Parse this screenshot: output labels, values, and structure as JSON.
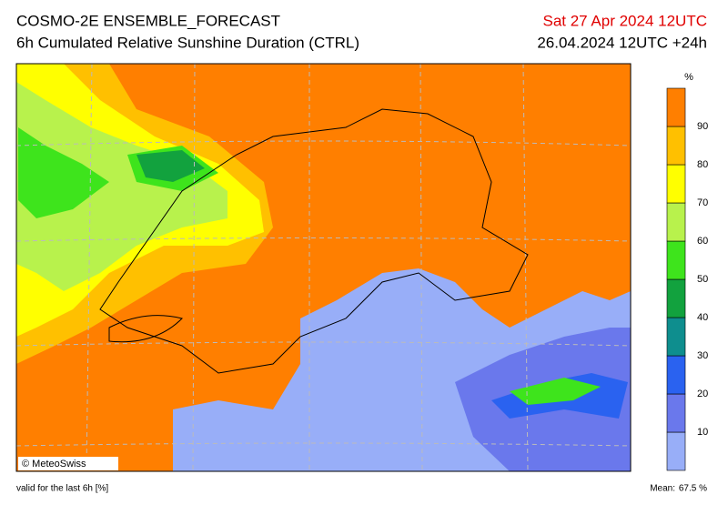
{
  "header": {
    "model": "COSMO-2E ENSEMBLE_FORECAST",
    "product": "6h Cumulated Relative Sunshine Duration (CTRL)",
    "valid_date": "Sat 27 Apr 2024 12UTC",
    "run": "26.04.2024 12UTC +24h"
  },
  "colorbar": {
    "unit": "%",
    "levels": [
      {
        "label": "",
        "color": "#98aef8"
      },
      {
        "label": "10",
        "color": "#6a78ec"
      },
      {
        "label": "20",
        "color": "#2a62f0"
      },
      {
        "label": "30",
        "color": "#0e8e8e"
      },
      {
        "label": "40",
        "color": "#12a23e"
      },
      {
        "label": "50",
        "color": "#3ee41c"
      },
      {
        "label": "60",
        "color": "#b8f24c"
      },
      {
        "label": "70",
        "color": "#ffff00"
      },
      {
        "label": "80",
        "color": "#ffc000"
      },
      {
        "label": "90",
        "color": "#ff7f00"
      }
    ]
  },
  "map": {
    "credit": "© MeteoSwiss"
  },
  "footer": {
    "validity": "valid for the last 6h [%]",
    "mean_label": "Mean:",
    "mean_value": "67.5 %"
  }
}
